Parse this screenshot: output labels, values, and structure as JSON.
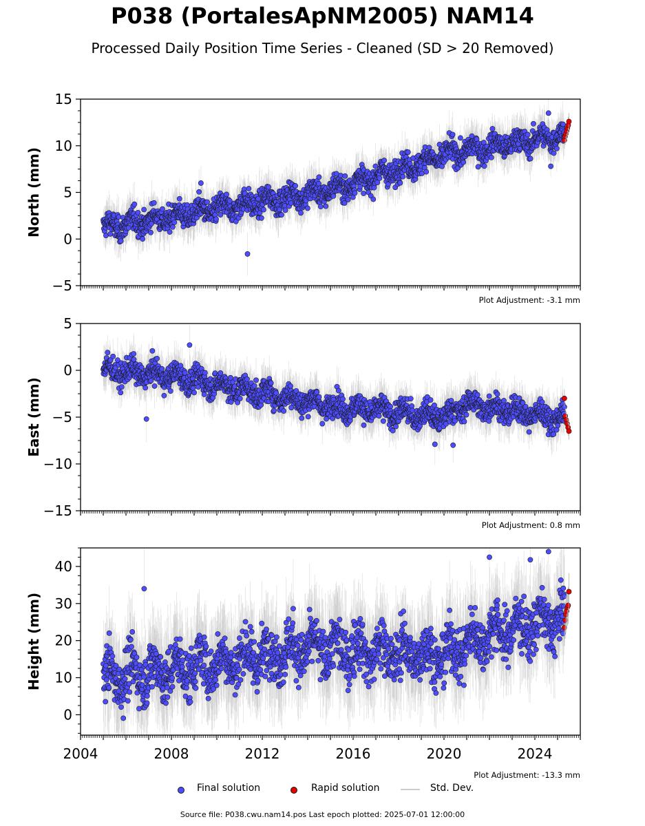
{
  "title": "P038 (PortalesApNM2005) NAM14",
  "subtitle": "Processed Daily Position Time Series - Cleaned (SD > 20 Removed)",
  "source_note": "Source file: P038.cwu.nam14.pos  Last epoch plotted: 2025-07-01 12:00:00",
  "colors": {
    "final": "#4d4dff",
    "rapid": "#e60000",
    "stddev": "#b0b0b0",
    "edge": "#1a1a1a"
  },
  "legend": {
    "final_label": "Final solution",
    "rapid_label": "Rapid solution",
    "stddev_label": "Std. Dev."
  },
  "chart_data": [
    {
      "type": "scatter",
      "ylabel": "North (mm)",
      "adjustment": "Plot Adjustment: -3.1 mm",
      "xlim": [
        2004,
        2026
      ],
      "ylim": [
        -5,
        15
      ],
      "yticks": [
        -5,
        0,
        5,
        10,
        15
      ],
      "xticks": [],
      "trend": {
        "x": [
          2005.0,
          2010,
          2015,
          2020.3,
          2025.4
        ],
        "y": [
          1.2,
          3.2,
          5.2,
          9.2,
          11.2
        ]
      },
      "noise_sd": 0.9,
      "series": [
        {
          "name": "Final solution",
          "range": [
            2005.0,
            2025.3
          ]
        },
        {
          "name": "Rapid solution",
          "range": [
            2025.3,
            2025.5
          ],
          "values": [
            10.6,
            11.0,
            11.3,
            11.6,
            11.9,
            12.2,
            12.6
          ]
        }
      ],
      "outliers": [
        {
          "x": 2011.35,
          "y": -1.6
        },
        {
          "x": 2009.3,
          "y": 6.0
        },
        {
          "x": 2024.6,
          "y": 13.5
        },
        {
          "x": 2024.7,
          "y": 7.8
        }
      ]
    },
    {
      "type": "scatter",
      "ylabel": "East (mm)",
      "adjustment": "Plot Adjustment: 0.8 mm",
      "xlim": [
        2004,
        2026
      ],
      "ylim": [
        -15,
        5
      ],
      "yticks": [
        -15,
        -10,
        -5,
        0,
        5
      ],
      "xticks": [],
      "trend": {
        "x": [
          2005.0,
          2008,
          2011,
          2015,
          2020,
          2021.0,
          2025.4
        ],
        "y": [
          0.0,
          -0.6,
          -2.0,
          -3.8,
          -5.0,
          -3.6,
          -5.2
        ]
      },
      "noise_sd": 0.9,
      "series": [
        {
          "name": "Final solution",
          "range": [
            2005.0,
            2025.3
          ]
        },
        {
          "name": "Rapid solution",
          "range": [
            2025.3,
            2025.5
          ],
          "values": [
            -3.0,
            -4.9,
            -5.3,
            -5.7,
            -6.1,
            -6.5
          ]
        }
      ],
      "outliers": [
        {
          "x": 2008.8,
          "y": 2.7
        },
        {
          "x": 2006.9,
          "y": -5.2
        },
        {
          "x": 2019.6,
          "y": -7.9
        },
        {
          "x": 2020.4,
          "y": -8.0
        }
      ]
    },
    {
      "type": "scatter",
      "ylabel": "Height (mm)",
      "adjustment": "Plot Adjustment: -13.3 mm",
      "xlim": [
        2004,
        2026
      ],
      "ylim": [
        -5.5,
        45
      ],
      "yticks": [
        0,
        10,
        20,
        30,
        40
      ],
      "xticks": [
        2004,
        2008,
        2012,
        2016,
        2020,
        2024
      ],
      "trend": {
        "x": [
          2005.0,
          2008,
          2011,
          2014,
          2017,
          2020,
          2022,
          2025.4
        ],
        "y": [
          10,
          12,
          15,
          18,
          17,
          16,
          22,
          26
        ]
      },
      "noise_sd": 5.0,
      "series": [
        {
          "name": "Final solution",
          "range": [
            2005.0,
            2025.3
          ]
        },
        {
          "name": "Rapid solution",
          "range": [
            2025.3,
            2025.5
          ],
          "values": [
            23.5,
            25.5,
            27.0,
            28.0,
            29.0,
            29.5,
            33.2
          ]
        }
      ],
      "outliers": [
        {
          "x": 2006.8,
          "y": 34.0
        },
        {
          "x": 2024.6,
          "y": 44.0
        },
        {
          "x": 2022.0,
          "y": 42.5
        },
        {
          "x": 2023.8,
          "y": 41.8
        }
      ]
    }
  ]
}
